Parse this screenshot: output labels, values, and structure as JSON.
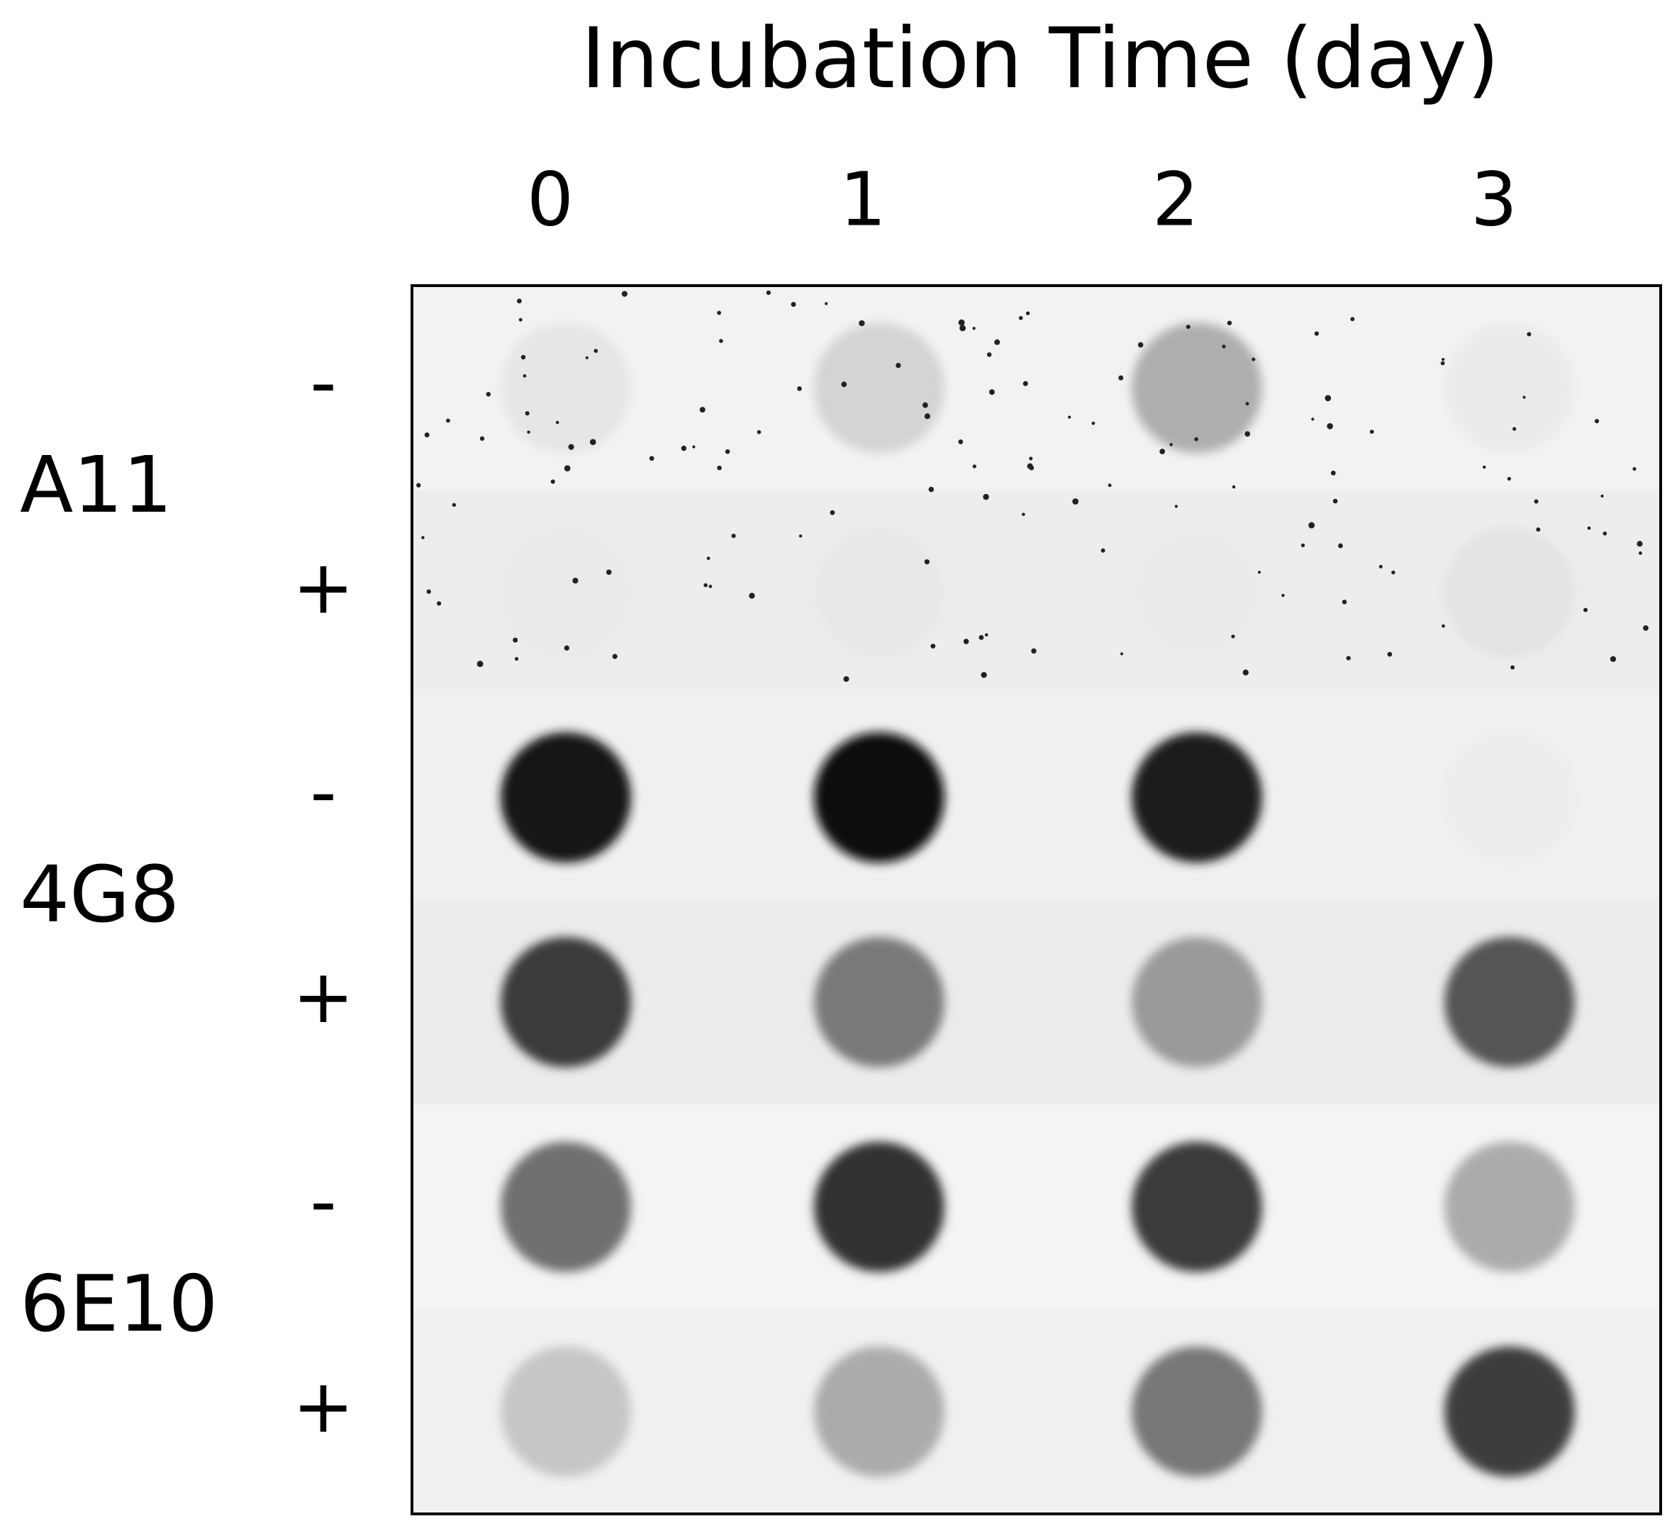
{
  "header": {
    "title": "Incubation Time (day)"
  },
  "columns": [
    "0",
    "1",
    "2",
    "3"
  ],
  "groups": [
    {
      "label": "A11",
      "rows": [
        "-",
        "+"
      ]
    },
    {
      "label": "4G8",
      "rows": [
        "-",
        "+"
      ]
    },
    {
      "label": "6E10",
      "rows": [
        "-",
        "+"
      ]
    }
  ]
}
